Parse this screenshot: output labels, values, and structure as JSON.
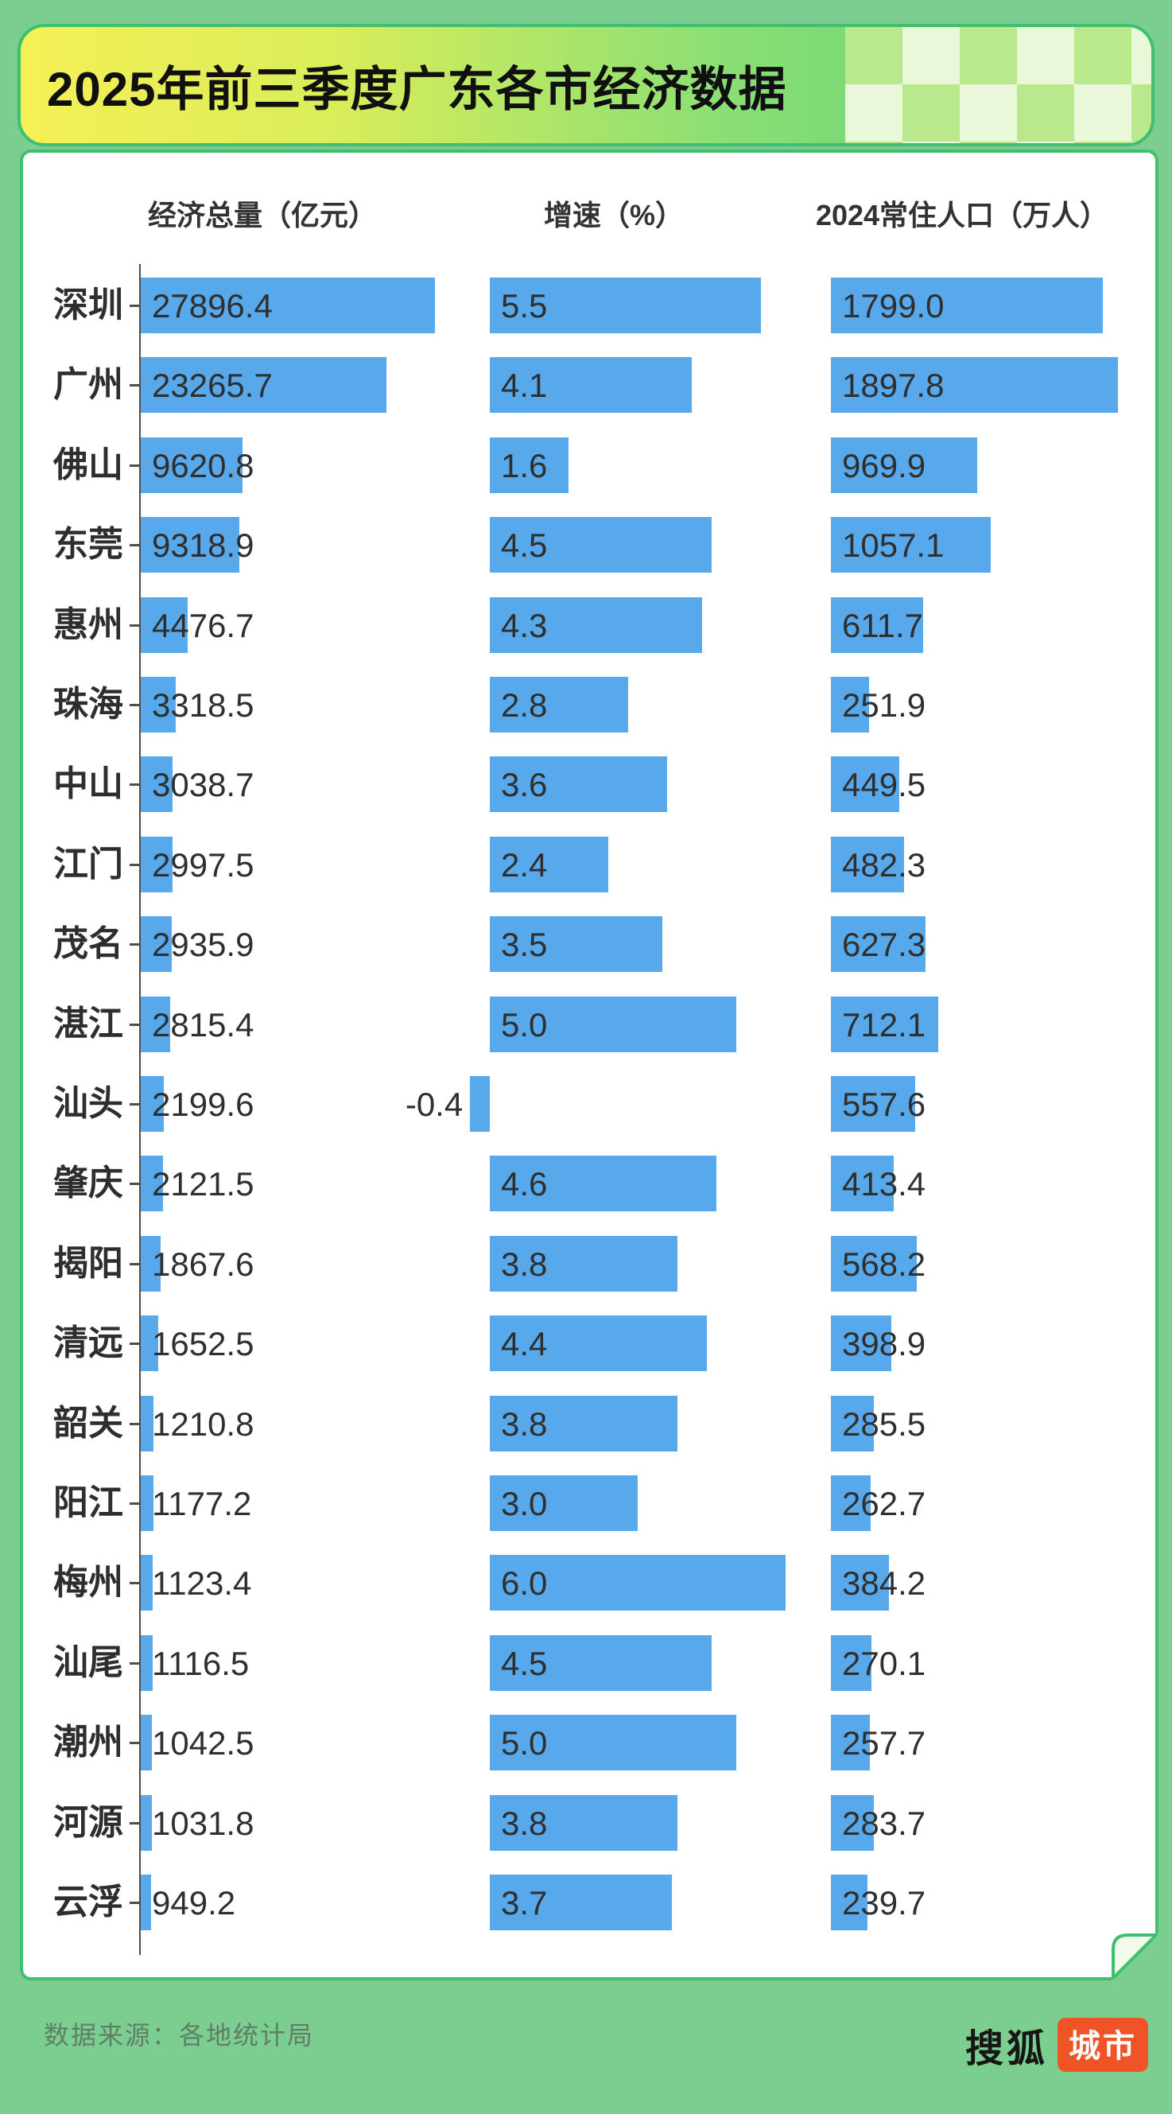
{
  "title": "2025年前三季度广东各市经济数据",
  "columns": [
    "经济总量（亿元）",
    "增速（%）",
    "2024常住人口（万人）"
  ],
  "footer": {
    "source": "数据来源：各地统计局"
  },
  "logo": {
    "brand": "搜狐",
    "badge": "城市"
  },
  "colors": {
    "page_background": "#7CCE90",
    "banner_border": "#3FC06E",
    "banner_gradient_start": "#F5F056",
    "banner_gradient_end": "#5ECE7B",
    "checker_light": "#EAF8DA",
    "checker_green": "#BAE88D",
    "bar_blue": "#58A9EB",
    "text_dark": "#2F2F2F",
    "badge_orange": "#F05426"
  },
  "chart_data": {
    "type": "bar",
    "orientation": "horizontal",
    "value_labels_shown": true,
    "title": "2025年前三季度广东各市经济数据",
    "categories": [
      "深圳",
      "广州",
      "佛山",
      "东莞",
      "惠州",
      "珠海",
      "中山",
      "江门",
      "茂名",
      "湛江",
      "汕头",
      "肇庆",
      "揭阳",
      "清远",
      "韶关",
      "阳江",
      "梅州",
      "汕尾",
      "潮州",
      "河源",
      "云浮"
    ],
    "series": [
      {
        "name": "经济总量（亿元）",
        "values": [
          27896.4,
          23265.7,
          9620.8,
          9318.9,
          4476.7,
          3318.5,
          3038.7,
          2997.5,
          2935.9,
          2815.4,
          2199.6,
          2121.5,
          1867.6,
          1652.5,
          1210.8,
          1177.2,
          1123.4,
          1116.5,
          1042.5,
          1031.8,
          949.2
        ]
      },
      {
        "name": "增速（%）",
        "values": [
          5.5,
          4.1,
          1.6,
          4.5,
          4.3,
          2.8,
          3.6,
          2.4,
          3.5,
          5.0,
          -0.4,
          4.6,
          3.8,
          4.4,
          3.8,
          3.0,
          6.0,
          4.5,
          5.0,
          3.8,
          3.7
        ]
      },
      {
        "name": "2024常住人口（万人）",
        "values": [
          1799.0,
          1897.8,
          969.9,
          1057.1,
          611.7,
          251.9,
          449.5,
          482.3,
          627.3,
          712.1,
          557.6,
          413.4,
          568.2,
          398.9,
          285.5,
          262.7,
          384.2,
          270.1,
          257.7,
          283.7,
          239.7
        ]
      }
    ],
    "source_note": "数据来源：各地统计局"
  }
}
